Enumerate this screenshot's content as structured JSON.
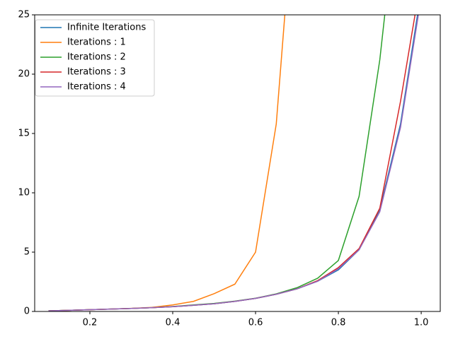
{
  "chart_data": {
    "type": "line",
    "x": [
      0.1,
      0.15,
      0.2,
      0.25,
      0.3,
      0.35,
      0.4,
      0.45,
      0.5,
      0.55,
      0.6,
      0.65,
      0.7,
      0.75,
      0.8,
      0.85,
      0.9,
      0.95,
      1.0
    ],
    "series": [
      {
        "name": "Infinite Iterations",
        "color": "#1f77b4",
        "values": [
          0.05,
          0.1,
          0.15,
          0.2,
          0.25,
          0.32,
          0.4,
          0.52,
          0.65,
          0.85,
          1.1,
          1.45,
          1.9,
          2.55,
          3.5,
          5.2,
          8.6,
          15.8,
          27
        ]
      },
      {
        "name": "Iterations : 1",
        "color": "#ff7f0e",
        "values": [
          0.05,
          0.1,
          0.15,
          0.2,
          0.26,
          0.34,
          0.55,
          0.85,
          1.5,
          2.3,
          5.0,
          15.8,
          38,
          null,
          null,
          null,
          null,
          null,
          null
        ]
      },
      {
        "name": "Iterations : 2",
        "color": "#2ca02c",
        "values": [
          0.05,
          0.1,
          0.15,
          0.2,
          0.25,
          0.32,
          0.42,
          0.55,
          0.68,
          0.87,
          1.12,
          1.48,
          2.0,
          2.8,
          4.3,
          9.7,
          21.2,
          37,
          null
        ]
      },
      {
        "name": "Iterations : 3",
        "color": "#d62728",
        "values": [
          0.05,
          0.1,
          0.15,
          0.2,
          0.25,
          0.32,
          0.4,
          0.52,
          0.65,
          0.85,
          1.1,
          1.45,
          1.9,
          2.6,
          3.7,
          5.3,
          8.7,
          17.7,
          28.1
        ]
      },
      {
        "name": "Iterations : 4",
        "color": "#9467bd",
        "values": [
          0.05,
          0.1,
          0.15,
          0.2,
          0.25,
          0.32,
          0.4,
          0.52,
          0.65,
          0.85,
          1.1,
          1.45,
          1.9,
          2.55,
          3.6,
          5.2,
          8.4,
          15.5,
          26.5
        ]
      }
    ],
    "xlim": [
      0.0667,
      1.046
    ],
    "ylim": [
      0,
      25
    ],
    "xticks": [
      0.2,
      0.4,
      0.6,
      0.8,
      {
        "value": 1,
        "label": "1.0"
      }
    ],
    "yticks": [
      0,
      5,
      10,
      15,
      20,
      25
    ],
    "legend": "upper left"
  }
}
